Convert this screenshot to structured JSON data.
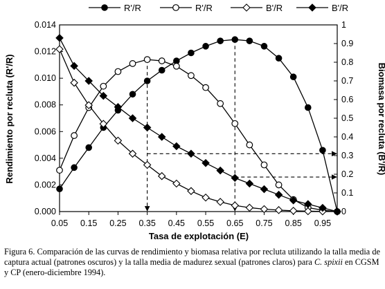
{
  "chart_data": {
    "type": "line",
    "xlabel": "Tasa de explotación (E)",
    "ylabel_left": "Rendimiento por recluta (R'/R)",
    "ylabel_right": "Biomasa por recluta (B'/R)",
    "x_ticks": [
      "0.05",
      "0.15",
      "0.25",
      "0.35",
      "0.45",
      "0.55",
      "0.65",
      "0.75",
      "0.85",
      "0.95"
    ],
    "y_left_ticks": [
      "0.000",
      "0.002",
      "0.004",
      "0.006",
      "0.008",
      "0.010",
      "0.012",
      "0.014"
    ],
    "y_right_ticks": [
      "0",
      "0.1",
      "0.2",
      "0.3",
      "0.4",
      "0.5",
      "0.6",
      "0.7",
      "0.8",
      "0.9",
      "1"
    ],
    "xlim": [
      0.05,
      1.0
    ],
    "ylim_left": [
      0,
      0.014
    ],
    "ylim_right": [
      0,
      1
    ],
    "x": [
      0.05,
      0.1,
      0.15,
      0.2,
      0.25,
      0.3,
      0.35,
      0.4,
      0.45,
      0.5,
      0.55,
      0.6,
      0.65,
      0.7,
      0.75,
      0.8,
      0.85,
      0.9,
      0.95,
      1.0
    ],
    "series": [
      {
        "name": "R'/R",
        "axis": "left",
        "marker": "filled-circle",
        "values": [
          0.0017,
          0.0033,
          0.0048,
          0.0063,
          0.0076,
          0.0088,
          0.0098,
          0.0106,
          0.0113,
          0.0119,
          0.0124,
          0.0128,
          0.0129,
          0.0128,
          0.0124,
          0.0115,
          0.0101,
          0.0078,
          0.0046,
          0.0
        ]
      },
      {
        "name": "R'/R",
        "axis": "left",
        "marker": "open-circle",
        "values": [
          0.0031,
          0.0057,
          0.0078,
          0.0094,
          0.0105,
          0.0111,
          0.0114,
          0.0113,
          0.0109,
          0.0102,
          0.0093,
          0.0081,
          0.0066,
          0.005,
          0.0035,
          0.002,
          0.0009,
          0.0003,
          0.0001,
          0.0
        ]
      },
      {
        "name": "B'/R",
        "axis": "right",
        "marker": "open-diamond",
        "values": [
          0.87,
          0.69,
          0.57,
          0.47,
          0.38,
          0.31,
          0.25,
          0.19,
          0.15,
          0.11,
          0.075,
          0.052,
          0.033,
          0.021,
          0.013,
          0.008,
          0.004,
          0.002,
          0.001,
          0.0
        ]
      },
      {
        "name": "B'/R",
        "axis": "right",
        "marker": "filled-diamond",
        "values": [
          0.93,
          0.78,
          0.7,
          0.62,
          0.56,
          0.5,
          0.45,
          0.4,
          0.35,
          0.31,
          0.26,
          0.22,
          0.18,
          0.15,
          0.12,
          0.09,
          0.06,
          0.04,
          0.02,
          0.0
        ]
      }
    ],
    "annotations": [
      {
        "type": "dashed-vertical",
        "x": 0.35,
        "from": "open-circle",
        "direction": "down"
      },
      {
        "type": "dashed-vertical",
        "x": 0.65,
        "from": "filled-circle",
        "direction": "down"
      },
      {
        "type": "dashed-horizontal",
        "x": 0.35,
        "y_right": 0.31,
        "direction": "right"
      },
      {
        "type": "dashed-horizontal",
        "x": 0.65,
        "y_right": 0.185,
        "direction": "right"
      }
    ],
    "legend_position": "top",
    "grid": false
  },
  "caption": {
    "text": "Figura 6. Comparación de las curvas de rendimiento y biomasa relativa por recluta utilizando la talla media de captura actual (patrones oscuros) y la talla media de madurez sexual (patrones claros) para ",
    "species": "C. spixii",
    "suffix": " en CGSM y CP (enero-diciembre 1994)."
  }
}
